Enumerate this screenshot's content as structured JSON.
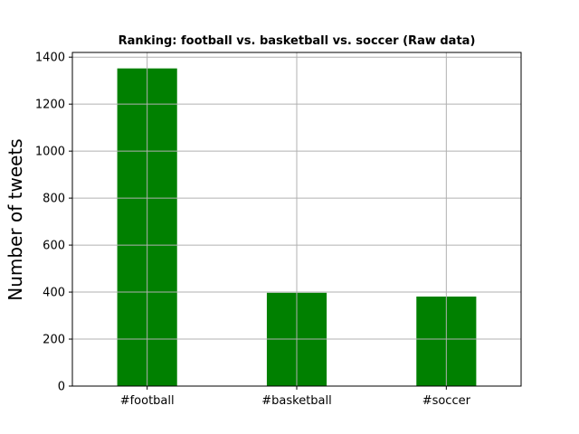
{
  "chart_data": {
    "type": "bar",
    "title": "Ranking: football vs. basketball vs. soccer  (Raw data)",
    "xlabel": "",
    "ylabel": "Number of tweets",
    "categories": [
      "#football",
      "#basketball",
      "#soccer"
    ],
    "values": [
      1352,
      397,
      381
    ],
    "ylim": [
      0,
      1420
    ],
    "yticks": [
      0,
      200,
      400,
      600,
      800,
      1000,
      1200,
      1400
    ],
    "bar_color": "#008000",
    "grid": true,
    "legend": "none"
  }
}
